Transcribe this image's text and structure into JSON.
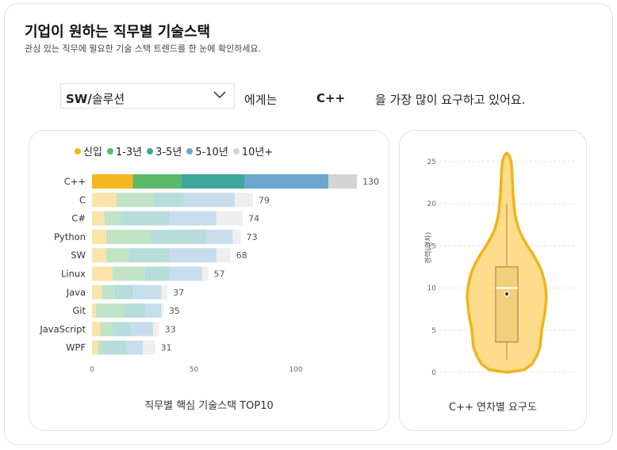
{
  "header": {
    "title": "기업이 원하는 직무별 기술스택",
    "subtitle": "관심 있는 직무에 필요한 기술 스택 트렌드를 한 눈에 확인하세요."
  },
  "selector": {
    "value_bold": "SW/",
    "value_rest": "솔루션"
  },
  "sentence": {
    "part1": "에게는",
    "highlight": "C++",
    "part2": "을  가장 많이 요구하고 있어요."
  },
  "colors": {
    "신입": "#F5B720",
    "1-3년": "#5CB86A",
    "3-5년": "#3FA69E",
    "5-10년": "#6BA6CF",
    "10년+": "#D4D4D4",
    "violin_fill": "#FDDC8C",
    "violin_stroke": "#F0B41C"
  },
  "legend": [
    {
      "label": "신입",
      "color": "#F5B720"
    },
    {
      "label": "1-3년",
      "color": "#5CB86A"
    },
    {
      "label": "3-5년",
      "color": "#3FA69E"
    },
    {
      "label": "5-10년",
      "color": "#6BA6CF"
    },
    {
      "label": "10년+",
      "color": "#D4D4D4"
    }
  ],
  "chart_data": [
    {
      "type": "bar",
      "orientation": "horizontal",
      "stacked": true,
      "title": "직무별 핵심 기술스택 TOP10",
      "categories": [
        "C++",
        "C",
        "C#",
        "Python",
        "SW",
        "Linux",
        "Java",
        "Git",
        "JavaScript",
        "WPF"
      ],
      "totals": [
        130,
        79,
        74,
        73,
        68,
        57,
        37,
        35,
        33,
        31
      ],
      "series": [
        {
          "name": "신입",
          "values": [
            20,
            12,
            6,
            7,
            7,
            10,
            5,
            2,
            4,
            3
          ]
        },
        {
          "name": "1-3년",
          "values": [
            24,
            18,
            8,
            22,
            11,
            16,
            6,
            14,
            6,
            2
          ]
        },
        {
          "name": "3-5년",
          "values": [
            31,
            15,
            24,
            27,
            20,
            12,
            9,
            10,
            9,
            12
          ]
        },
        {
          "name": "5-10년",
          "values": [
            41,
            25,
            23,
            13,
            23,
            16,
            14,
            8,
            11,
            8
          ]
        },
        {
          "name": "10년+",
          "values": [
            14,
            9,
            13,
            4,
            7,
            3,
            3,
            1,
            3,
            6
          ]
        }
      ],
      "highlight": "C++",
      "xticks": [
        0,
        50,
        100
      ],
      "xlim": [
        0,
        130
      ]
    },
    {
      "type": "violin",
      "title": "C++ 연차별 요구도",
      "ylabel": "경력(연차)",
      "yticks": [
        0,
        5,
        10,
        15,
        20,
        25
      ],
      "ylim": [
        0,
        26
      ],
      "distribution_max": 26,
      "distribution_min": 0,
      "whisker_low": 1.5,
      "q1": 3.6,
      "median": 10.0,
      "q3": 12.5,
      "whisker_high": 20,
      "mean": 9.3
    }
  ]
}
